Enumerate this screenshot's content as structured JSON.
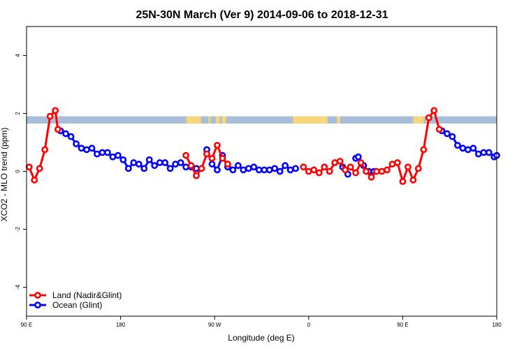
{
  "chart_data": {
    "type": "line",
    "title": "25N-30N March (Ver 9)   2014-09-06 to 2018-12-31",
    "xlabel": "Longitude (deg E)",
    "ylabel": "XCO2 - MLO trend (ppm)",
    "xlim": [
      90,
      540
    ],
    "ylim": [
      -5,
      5
    ],
    "x_ticks": [
      {
        "value": 90,
        "label": "90 E"
      },
      {
        "value": 180,
        "label": "180"
      },
      {
        "value": 270,
        "label": "90 W"
      },
      {
        "value": 360,
        "label": "0"
      },
      {
        "value": 450,
        "label": "90 E"
      },
      {
        "value": 540,
        "label": "180"
      }
    ],
    "y_ticks": [
      {
        "value": -4,
        "label": "-4"
      },
      {
        "value": -2,
        "label": "-2"
      },
      {
        "value": 0,
        "label": "0"
      },
      {
        "value": 2,
        "label": "2"
      },
      {
        "value": 4,
        "label": "4"
      }
    ],
    "land_mask_band": {
      "y_range": [
        1.65,
        1.9
      ],
      "ocean_color": "#a8bed8",
      "land_color": "#f8d77a",
      "land_segments": [
        [
          243,
          257
        ],
        [
          264,
          266
        ],
        [
          271,
          275
        ],
        [
          277,
          281
        ],
        [
          345,
          378
        ],
        [
          387,
          390
        ],
        [
          460,
          470
        ],
        [
          472,
          473
        ]
      ]
    },
    "legend": {
      "position": "bottom-left",
      "entries": [
        {
          "label": "Land (Nadir&Glint)",
          "color": "#ff0000"
        },
        {
          "label": "Ocean (Glint)",
          "color": "#0000ff"
        }
      ]
    },
    "series": [
      {
        "name": "Land (Nadir&Glint)",
        "color": "#ff0000",
        "segments": [
          [
            [
              92.5,
              0.15
            ],
            [
              97.5,
              -0.3
            ],
            [
              102.5,
              0.1
            ],
            [
              107.5,
              0.75
            ],
            [
              112.5,
              1.9
            ],
            [
              117.5,
              2.1
            ],
            [
              120,
              1.45
            ]
          ],
          [
            [
              242.5,
              0.55
            ],
            [
              247.5,
              0.2
            ],
            [
              252.5,
              -0.15
            ],
            [
              257.5,
              0.1
            ],
            [
              262.5,
              0.6
            ],
            [
              267.5,
              0.45
            ],
            [
              272.5,
              0.9
            ],
            [
              277.5,
              0.45
            ],
            [
              282.5,
              0.25
            ]
          ],
          [
            [
              355,
              0.15
            ],
            [
              360,
              0.0
            ],
            [
              365,
              0.05
            ],
            [
              370,
              -0.05
            ],
            [
              375,
              0.15
            ],
            [
              380,
              0.0
            ],
            [
              385,
              0.3
            ],
            [
              390,
              0.35
            ],
            [
              395,
              0.05
            ],
            [
              400,
              0.15
            ],
            [
              405,
              -0.05
            ],
            [
              410,
              0.3
            ],
            [
              415,
              0.0
            ],
            [
              420,
              -0.2
            ],
            [
              425,
              0.0
            ],
            [
              430,
              0.0
            ],
            [
              435,
              0.05
            ],
            [
              440,
              0.25
            ],
            [
              445,
              0.3
            ],
            [
              450,
              -0.35
            ],
            [
              455,
              0.15
            ],
            [
              460,
              -0.3
            ],
            [
              465,
              0.1
            ],
            [
              470,
              0.75
            ],
            [
              475,
              1.85
            ],
            [
              480,
              2.1
            ],
            [
              485,
              1.45
            ]
          ]
        ]
      },
      {
        "name": "Ocean (Glint)",
        "color": "#0000ff",
        "segments": [
          [
            [
              122.5,
              1.4
            ],
            [
              127.5,
              1.3
            ],
            [
              132.5,
              1.2
            ],
            [
              137.5,
              0.95
            ],
            [
              142.5,
              0.8
            ],
            [
              147.5,
              0.75
            ],
            [
              152.5,
              0.8
            ],
            [
              157.5,
              0.6
            ],
            [
              162.5,
              0.65
            ],
            [
              167.5,
              0.65
            ],
            [
              172.5,
              0.5
            ],
            [
              177.5,
              0.55
            ],
            [
              182.5,
              0.4
            ],
            [
              187.5,
              0.1
            ],
            [
              192.5,
              0.3
            ],
            [
              197.5,
              0.25
            ],
            [
              202.5,
              0.1
            ],
            [
              207.5,
              0.4
            ],
            [
              212.5,
              0.2
            ],
            [
              217.5,
              0.3
            ],
            [
              222.5,
              0.3
            ],
            [
              227.5,
              0.1
            ],
            [
              232.5,
              0.25
            ],
            [
              237.5,
              0.3
            ],
            [
              242.5,
              0.15
            ],
            [
              247.5,
              0.15
            ],
            [
              252.5,
              0.1
            ]
          ],
          [
            [
              262.5,
              0.75
            ],
            [
              267.5,
              0.25
            ],
            [
              272.5,
              0.05
            ],
            [
              277.5,
              0.55
            ],
            [
              282.5,
              0.15
            ],
            [
              287.5,
              0.05
            ],
            [
              292.5,
              0.2
            ],
            [
              297.5,
              0.05
            ],
            [
              302.5,
              0.1
            ],
            [
              307.5,
              0.15
            ],
            [
              312.5,
              0.05
            ],
            [
              317.5,
              0.05
            ],
            [
              322.5,
              0.05
            ],
            [
              327.5,
              0.1
            ],
            [
              332.5,
              0.0
            ],
            [
              337.5,
              0.2
            ],
            [
              342.5,
              0.05
            ],
            [
              347.5,
              0.1
            ]
          ],
          [
            [
              392.5,
              0.15
            ],
            [
              397.5,
              -0.1
            ]
          ],
          [
            [
              405,
              0.45
            ],
            [
              407.5,
              0.5
            ],
            [
              412.5,
              0.2
            ],
            [
              417.5,
              0.0
            ],
            [
              422.5,
              0.0
            ]
          ],
          [
            [
              487.5,
              1.4
            ],
            [
              492.5,
              1.3
            ],
            [
              497.5,
              1.2
            ],
            [
              502.5,
              0.9
            ],
            [
              507.5,
              0.8
            ],
            [
              512.5,
              0.75
            ],
            [
              517.5,
              0.8
            ],
            [
              522.5,
              0.6
            ],
            [
              527.5,
              0.65
            ],
            [
              532.5,
              0.65
            ],
            [
              537.5,
              0.5
            ],
            [
              540,
              0.55
            ]
          ]
        ]
      }
    ]
  }
}
